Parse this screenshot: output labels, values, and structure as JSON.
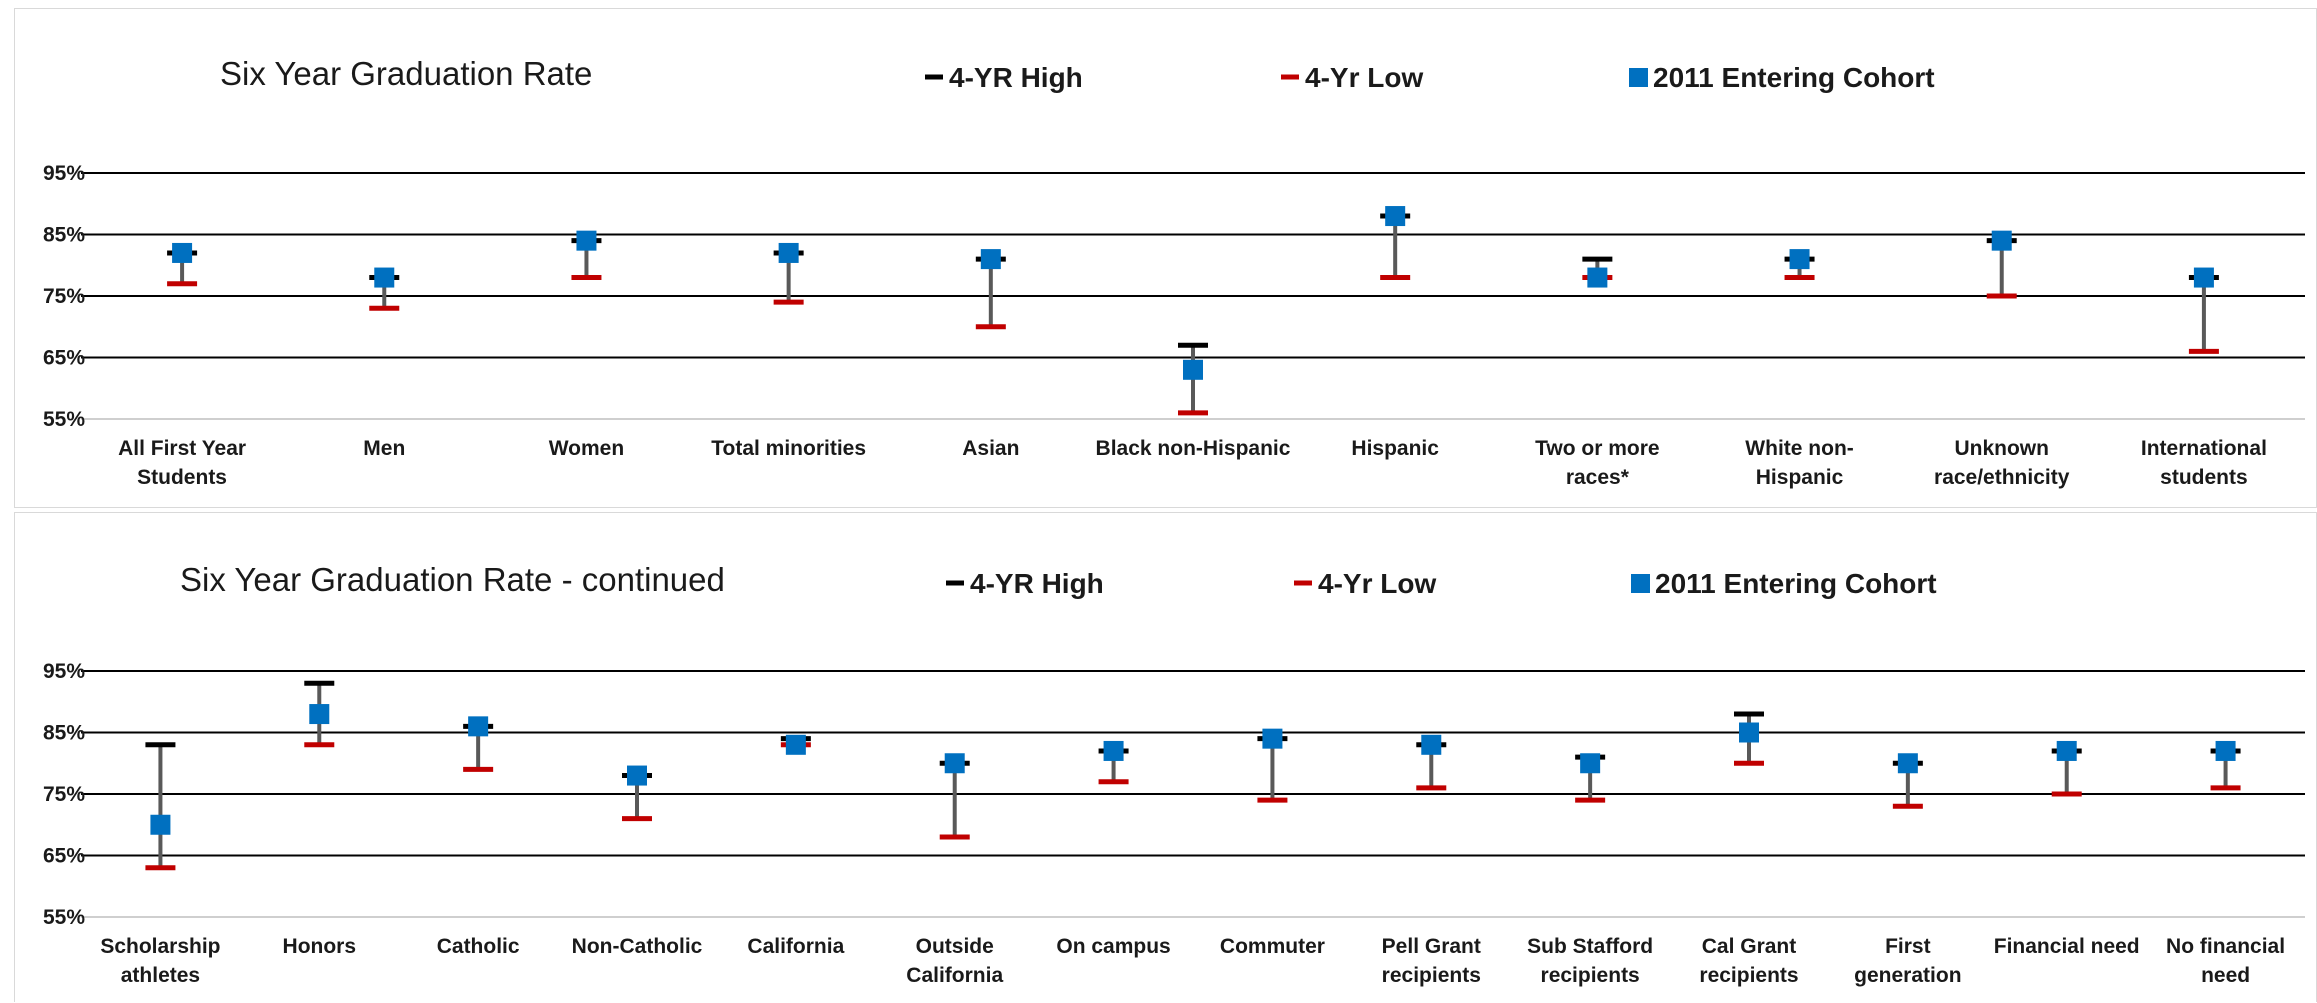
{
  "chart_data": [
    {
      "type": "scatter",
      "title": "Six Year Graduation Rate",
      "legend": {
        "placement": "top",
        "entries": [
          {
            "name": "4-YR High",
            "color": "#000000",
            "marker": "dash"
          },
          {
            "name": "4-Yr Low",
            "color": "#c00000",
            "marker": "dash"
          },
          {
            "name": "2011 Entering Cohort",
            "color": "#0070c0",
            "marker": "square"
          }
        ]
      },
      "y_ticks": [
        "95%",
        "85%",
        "75%",
        "65%",
        "55%"
      ],
      "ylim": [
        55,
        95
      ],
      "grid": true,
      "categories": [
        [
          "All First Year",
          "Students"
        ],
        [
          "Men"
        ],
        [
          "Women"
        ],
        [
          "Total minorities"
        ],
        [
          "Asian"
        ],
        [
          "Black non-Hispanic"
        ],
        [
          "Hispanic"
        ],
        [
          "Two or more",
          "races*"
        ],
        [
          "White non-",
          "Hispanic"
        ],
        [
          "Unknown",
          "race/ethnicity"
        ],
        [
          "International",
          "students"
        ]
      ],
      "series": [
        {
          "name": "4-YR High",
          "values": [
            82,
            78,
            84,
            82,
            81,
            67,
            88,
            81,
            81,
            84,
            78
          ]
        },
        {
          "name": "4-Yr Low",
          "values": [
            77,
            73,
            78,
            74,
            70,
            56,
            78,
            78,
            78,
            75,
            66
          ]
        },
        {
          "name": "2011 Entering Cohort",
          "values": [
            82,
            78,
            84,
            82,
            81,
            63,
            88,
            78,
            81,
            84,
            78
          ]
        }
      ]
    },
    {
      "type": "scatter",
      "title": "Six Year Graduation Rate - continued",
      "legend": {
        "placement": "top",
        "entries": [
          {
            "name": "4-YR High",
            "color": "#000000",
            "marker": "dash"
          },
          {
            "name": "4-Yr Low",
            "color": "#c00000",
            "marker": "dash"
          },
          {
            "name": "2011 Entering Cohort",
            "color": "#0070c0",
            "marker": "square"
          }
        ]
      },
      "y_ticks": [
        "95%",
        "85%",
        "75%",
        "65%",
        "55%"
      ],
      "ylim": [
        55,
        95
      ],
      "grid": true,
      "categories": [
        [
          "Scholarship",
          "athletes"
        ],
        [
          "Honors"
        ],
        [
          "Catholic"
        ],
        [
          "Non-Catholic"
        ],
        [
          "California"
        ],
        [
          "Outside",
          "California"
        ],
        [
          "On campus"
        ],
        [
          "Commuter"
        ],
        [
          "Pell Grant",
          "recipients"
        ],
        [
          "Sub Stafford",
          "recipients"
        ],
        [
          "Cal Grant",
          "recipients"
        ],
        [
          "First",
          "generation"
        ],
        [
          "Financial need"
        ],
        [
          "No financial",
          "need"
        ]
      ],
      "series": [
        {
          "name": "4-YR High",
          "values": [
            83,
            93,
            86,
            78,
            84,
            80,
            82,
            84,
            83,
            81,
            88,
            80,
            82,
            82
          ]
        },
        {
          "name": "4-Yr Low",
          "values": [
            63,
            83,
            79,
            71,
            83,
            68,
            77,
            74,
            76,
            74,
            80,
            73,
            75,
            76
          ]
        },
        {
          "name": "2011 Entering Cohort",
          "values": [
            70,
            88,
            86,
            78,
            83,
            80,
            82,
            84,
            83,
            80,
            85,
            80,
            82,
            82
          ]
        }
      ]
    }
  ]
}
